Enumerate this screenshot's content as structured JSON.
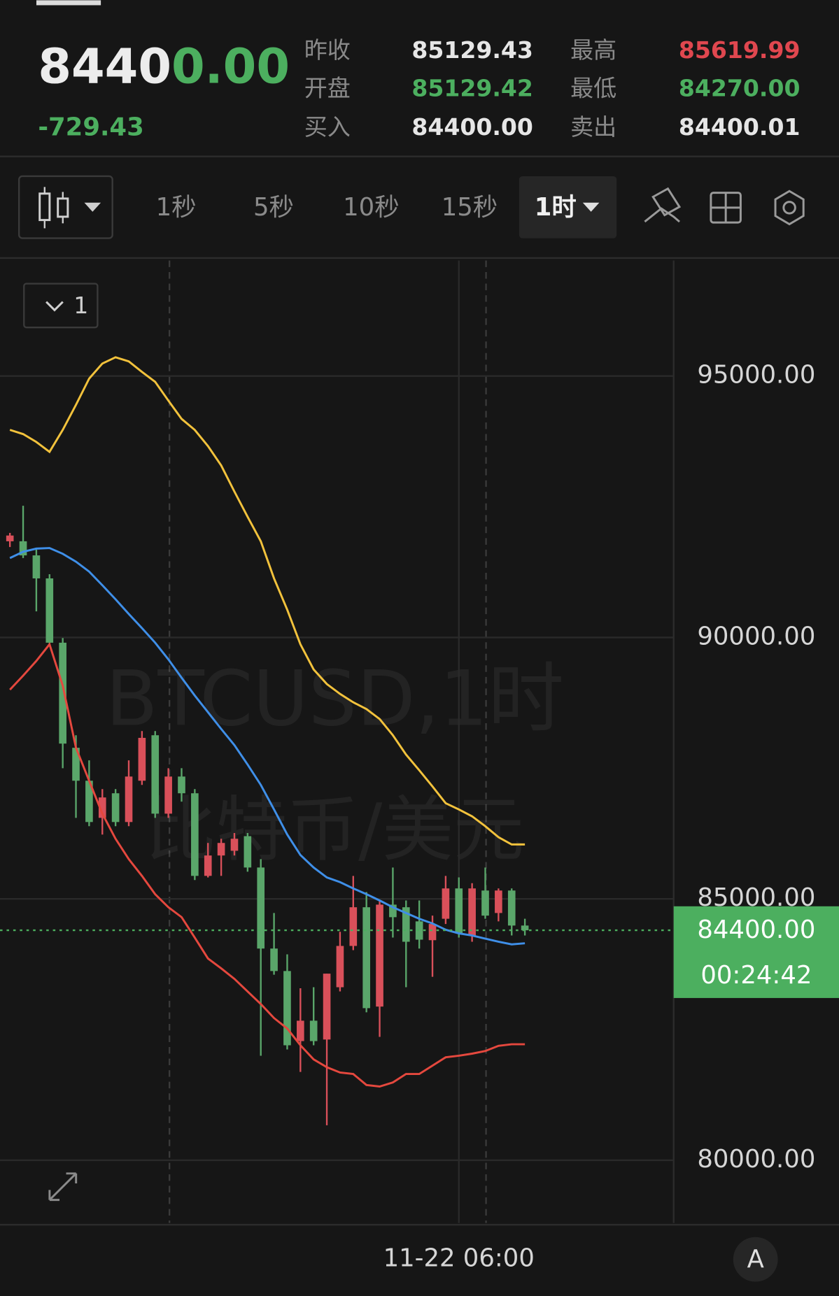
{
  "header": {
    "price": "84400.00",
    "change": "-729.43",
    "stats": [
      {
        "label": "昨收",
        "value": "85129.43"
      },
      {
        "label": "开盘",
        "value": "85129.42"
      },
      {
        "label": "买入",
        "value": "84400.00"
      },
      {
        "label": "最高",
        "value": "85619.99"
      },
      {
        "label": "最低",
        "value": "84270.00"
      },
      {
        "label": "卖出",
        "value": "84400.01"
      }
    ]
  },
  "toolbar": {
    "intervals": [
      "1秒",
      "5秒",
      "10秒",
      "15秒"
    ],
    "selected": "1时"
  },
  "indicator_selector": "1",
  "watermark": {
    "symbol": "BTCUSD,1时",
    "name": "比特币/美元"
  },
  "chart_data": {
    "type": "candlestick",
    "up_color": "#d9505a",
    "down_color": "#5aa66a",
    "candles": {
      "open": [
        91840,
        91840,
        91570,
        91130,
        89900,
        87890,
        87260,
        86550,
        87020,
        86470,
        87260,
        88130,
        86630,
        87340,
        87020,
        85440,
        85830,
        85920,
        86200,
        85600,
        84050,
        83620,
        82280,
        82670,
        82310,
        83310,
        84100,
        84840,
        82940,
        84890,
        84840,
        84570,
        84210,
        84620,
        85200,
        84300,
        85160,
        84730,
        85160,
        84490
      ],
      "high": [
        92000,
        92520,
        91680,
        91210,
        89990,
        88130,
        87650,
        87100,
        87100,
        87650,
        88210,
        88210,
        87500,
        87500,
        87100,
        86070,
        86150,
        86260,
        86260,
        85760,
        84730,
        83940,
        83290,
        83310,
        83570,
        84370,
        85440,
        85130,
        84970,
        85600,
        84970,
        84970,
        84680,
        85440,
        85410,
        85300,
        85600,
        85200,
        85200,
        84620
      ],
      "low": [
        91730,
        91520,
        90500,
        89830,
        87500,
        86550,
        86390,
        86230,
        86390,
        86390,
        87180,
        86550,
        86550,
        86860,
        85360,
        85410,
        85440,
        85830,
        85520,
        82000,
        83550,
        82120,
        81690,
        82200,
        80670,
        83230,
        84020,
        82830,
        82360,
        84260,
        83310,
        84050,
        83510,
        84520,
        84260,
        84180,
        84620,
        84570,
        84300,
        84300
      ],
      "close": [
        91950,
        91570,
        91130,
        89900,
        87970,
        87260,
        86470,
        86940,
        86470,
        87340,
        88080,
        86630,
        87340,
        87020,
        85440,
        85830,
        86070,
        86150,
        85600,
        84050,
        83620,
        82200,
        82670,
        82280,
        83570,
        84100,
        84840,
        82910,
        84890,
        84650,
        84180,
        84220,
        84520,
        85200,
        84340,
        85200,
        84680,
        85160,
        84490,
        84400
      ]
    },
    "lines": [
      {
        "color": "#f2c23c",
        "values": [
          93970,
          93890,
          93740,
          93550,
          93970,
          94450,
          94950,
          95240,
          95360,
          95280,
          95080,
          94890,
          94530,
          94180,
          93970,
          93660,
          93290,
          92790,
          92310,
          91840,
          91130,
          90530,
          89870,
          89390,
          89110,
          88920,
          88760,
          88630,
          88440,
          88130,
          87760,
          87460,
          87150,
          86830,
          86710,
          86580,
          86390,
          86180,
          86040,
          86040
        ]
      },
      {
        "color": "#3f8fe8",
        "values": [
          91520,
          91640,
          91700,
          91710,
          91600,
          91450,
          91260,
          91000,
          90730,
          90450,
          90180,
          89900,
          89580,
          89230,
          88890,
          88570,
          88250,
          87940,
          87570,
          87180,
          86710,
          86230,
          85840,
          85600,
          85410,
          85320,
          85200,
          85090,
          84970,
          84840,
          84730,
          84620,
          84530,
          84410,
          84340,
          84300,
          84240,
          84180,
          84130,
          84150
        ]
      },
      {
        "color": "#e5483e",
        "values": [
          89000,
          89270,
          89550,
          89870,
          89080,
          87890,
          87260,
          86630,
          86150,
          85760,
          85440,
          85090,
          84840,
          84650,
          84260,
          83860,
          83670,
          83470,
          83230,
          82990,
          82720,
          82520,
          82200,
          81930,
          81780,
          81680,
          81650,
          81440,
          81410,
          81490,
          81650,
          81650,
          81810,
          81970,
          82000,
          82040,
          82090,
          82190,
          82220,
          82220
        ]
      }
    ],
    "ylim": [
      78800,
      97210
    ],
    "yticks": [
      {
        "value": 80000,
        "label": "80000.00"
      },
      {
        "value": 85000,
        "label": "85000.00"
      },
      {
        "value": 90000,
        "label": "90000.00"
      },
      {
        "value": 95000,
        "label": "95000.00"
      }
    ],
    "xticks": [
      {
        "value": 34,
        "label": "11-22 06:00"
      }
    ],
    "grid": true,
    "last_price": {
      "value": 84400,
      "label": "84400.00",
      "color": "#4caf5f"
    },
    "countdown": "00:24:42"
  },
  "footer": {
    "button": "A"
  }
}
